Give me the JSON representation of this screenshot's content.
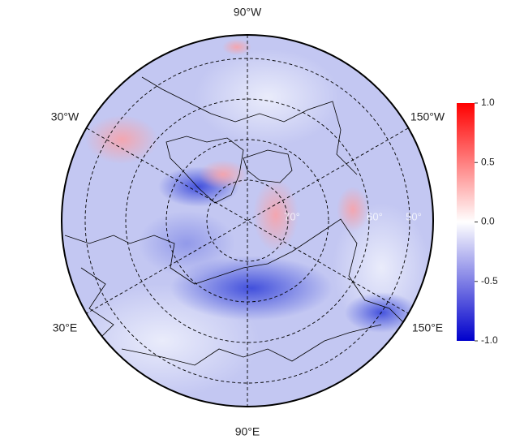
{
  "map": {
    "meridian_labels": [
      "90°W",
      "150°W",
      "30°W",
      "30°E",
      "150°E",
      "90°E"
    ],
    "latitude_labels": [
      "70°",
      "60°",
      "50°"
    ],
    "colorbar": {
      "range": [
        -1.0,
        1.0
      ],
      "ticks": [
        {
          "value": 1.0,
          "label": "1.0"
        },
        0.5,
        {
          "value": 0.0,
          "label": "0.0"
        },
        -0.5,
        {
          "value": -1.0,
          "label": "-1.0"
        }
      ],
      "colors": [
        "#0000cc",
        "#ffffff",
        "#ff0000"
      ]
    }
  }
}
